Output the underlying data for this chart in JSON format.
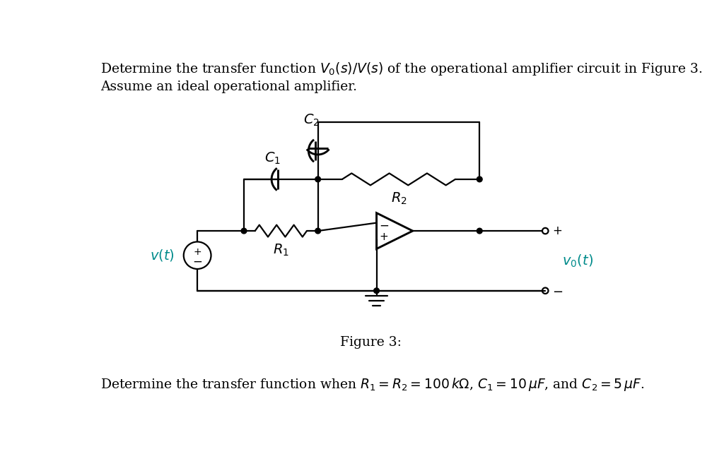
{
  "title_line1": "Determine the transfer function $V_0(s)/V(s)$ of the operational amplifier circuit in Figure 3.",
  "title_line2": "Assume an ideal operational amplifier.",
  "figure_caption": "Figure 3:",
  "bottom_text": "Determine the transfer function when $R_1 = R_2 = 100\\,k\\Omega$, $C_1 = 10\\,\\mu F$, and $C_2 = 5\\,\\mu F$.",
  "bg_color": "#ffffff",
  "line_color": "#000000",
  "vt_color": "#008B8B",
  "font_size_text": 13.5,
  "font_size_labels": 14,
  "dot_r": 0.05
}
